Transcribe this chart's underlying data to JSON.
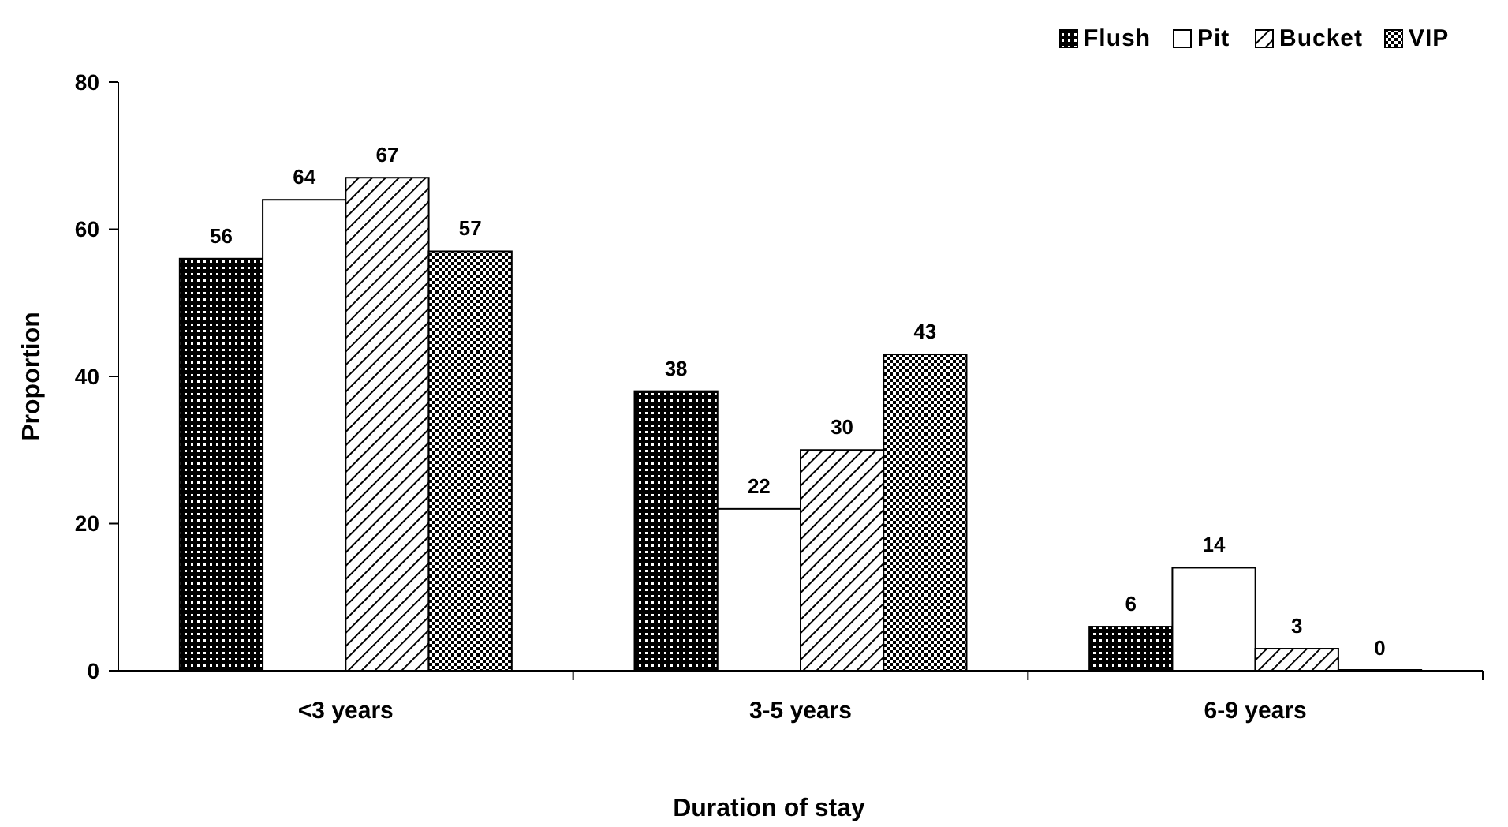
{
  "chart_data": {
    "type": "bar",
    "xlabel": "Duration of stay",
    "ylabel": "Proportion",
    "categories": [
      "<3 years",
      "3-5 years",
      "6-9 years"
    ],
    "series": [
      {
        "name": "Flush",
        "color": "#000000",
        "values": [
          56,
          38,
          6
        ]
      },
      {
        "name": "Pit",
        "color": "#ffffff",
        "values": [
          64,
          22,
          14
        ]
      },
      {
        "name": "Bucket",
        "color": "#000000",
        "values": [
          67,
          30,
          3
        ]
      },
      {
        "name": "VIP",
        "color": "#000000",
        "values": [
          57,
          43,
          0
        ]
      }
    ],
    "ylim": [
      0,
      80
    ],
    "yticks": [
      0,
      20,
      40,
      60,
      80
    ],
    "data_labels": true,
    "legend": "top right",
    "grid": false
  }
}
